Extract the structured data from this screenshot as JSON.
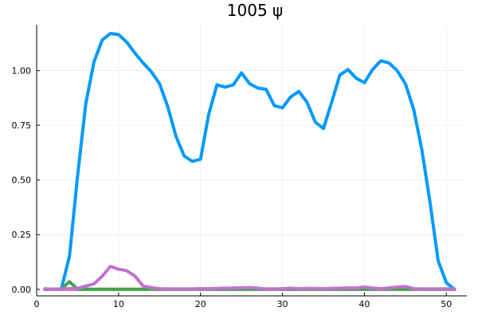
{
  "chart_data": {
    "type": "line",
    "title": "1005 ψ",
    "xlabel": "",
    "ylabel": "",
    "xlim": [
      0,
      52.5
    ],
    "ylim": [
      -0.03,
      1.21
    ],
    "grid": true,
    "legend": "none",
    "xticks": [
      0,
      10,
      20,
      30,
      40,
      50
    ],
    "xtick_labels": [
      "0",
      "10",
      "20",
      "30",
      "40",
      "50"
    ],
    "yticks": [
      0.0,
      0.25,
      0.5,
      0.75,
      1.0
    ],
    "ytick_labels": [
      "0.00",
      "0.25",
      "0.50",
      "0.75",
      "1.00"
    ],
    "x": [
      1,
      2,
      3,
      4,
      5,
      6,
      7,
      8,
      9,
      10,
      11,
      12,
      13,
      14,
      15,
      16,
      17,
      18,
      19,
      20,
      21,
      22,
      23,
      24,
      25,
      26,
      27,
      28,
      29,
      30,
      31,
      32,
      33,
      34,
      35,
      36,
      37,
      38,
      39,
      40,
      41,
      42,
      43,
      44,
      45,
      46,
      47,
      48,
      49,
      50,
      51
    ],
    "series": [
      {
        "color": "#009af9",
        "values": [
          0.0,
          0.0,
          0.0,
          0.15,
          0.52,
          0.85,
          1.04,
          1.14,
          1.17,
          1.165,
          1.13,
          1.08,
          1.035,
          0.995,
          0.94,
          0.835,
          0.7,
          0.61,
          0.585,
          0.595,
          0.8,
          0.935,
          0.925,
          0.935,
          0.99,
          0.94,
          0.92,
          0.915,
          0.84,
          0.83,
          0.88,
          0.905,
          0.855,
          0.765,
          0.735,
          0.855,
          0.98,
          1.005,
          0.965,
          0.945,
          1.005,
          1.045,
          1.035,
          1.0,
          0.94,
          0.825,
          0.64,
          0.4,
          0.13,
          0.03,
          0.0
        ]
      },
      {
        "color": "#e26f46",
        "values": [
          0.0,
          0.0,
          0.0,
          0.0,
          0.0,
          0.0,
          0.0,
          0.0,
          0.0,
          0.0,
          0.0,
          0.0,
          0.0,
          0.0,
          0.0,
          0.0,
          0.0,
          0.0,
          0.0,
          0.0,
          0.0,
          0.0,
          0.0,
          0.0,
          0.0,
          0.0,
          0.0,
          0.0,
          0.0,
          0.0,
          0.0,
          0.0,
          0.0,
          0.0,
          0.0,
          0.0,
          0.0,
          0.0,
          0.0,
          0.0,
          0.0,
          0.0,
          0.0,
          0.0,
          0.0,
          0.0,
          0.0,
          0.0,
          0.0,
          0.0,
          0.0
        ]
      },
      {
        "color": "#3da44d",
        "values": [
          0.0,
          0.0,
          0.0,
          0.035,
          0.0,
          0.0,
          0.0,
          0.0,
          0.0,
          0.0,
          0.0,
          0.0,
          0.0,
          0.0,
          0.0,
          0.0,
          0.0,
          0.0,
          0.0,
          0.0,
          0.0,
          0.0,
          0.0,
          0.0,
          0.0,
          0.0,
          0.0,
          0.0,
          0.0,
          0.0,
          0.0,
          0.0,
          0.0,
          0.0,
          0.0,
          0.0,
          0.0,
          0.0,
          0.0,
          0.0,
          0.0,
          0.0,
          0.0,
          0.0,
          0.0,
          0.0,
          0.0,
          0.0,
          0.0,
          0.0,
          0.0
        ]
      },
      {
        "color": "#c271d2",
        "values": [
          0.003,
          0.0,
          0.002,
          0.003,
          0.004,
          0.015,
          0.025,
          0.06,
          0.105,
          0.092,
          0.085,
          0.06,
          0.015,
          0.008,
          0.003,
          0.002,
          0.002,
          0.002,
          0.002,
          0.003,
          0.003,
          0.004,
          0.005,
          0.006,
          0.007,
          0.008,
          0.005,
          0.002,
          0.002,
          0.003,
          0.005,
          0.003,
          0.004,
          0.004,
          0.003,
          0.004,
          0.005,
          0.007,
          0.006,
          0.01,
          0.006,
          0.003,
          0.006,
          0.01,
          0.013,
          0.003,
          0.002,
          0.002,
          0.002,
          0.002,
          0.002
        ]
      }
    ]
  }
}
